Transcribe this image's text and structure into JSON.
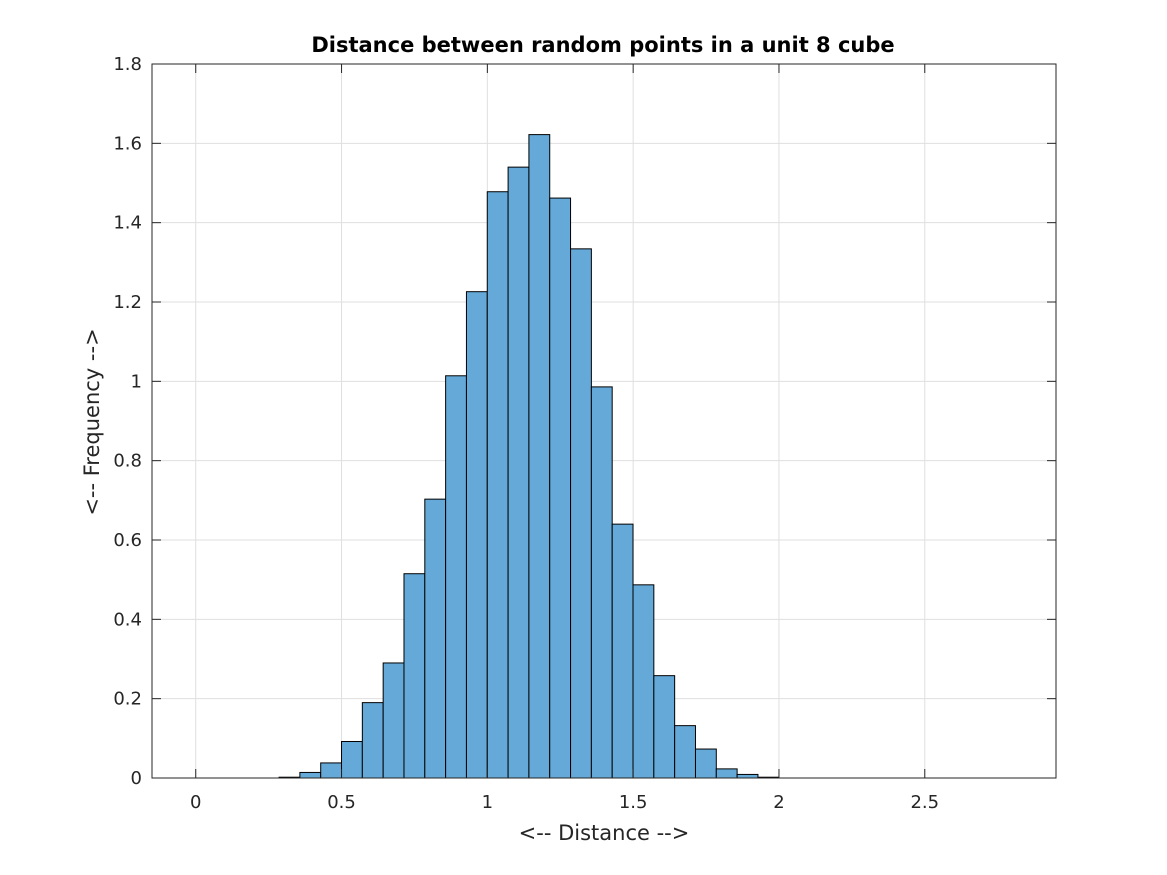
{
  "chart_data": {
    "type": "bar",
    "title": "Distance between random points in a unit 8 cube",
    "xlabel": "<-- Distance -->",
    "ylabel": "<-- Frequency -->",
    "xlim": [
      -0.15,
      2.95
    ],
    "ylim": [
      0,
      1.8
    ],
    "grid": true,
    "bin_width": 0.0714,
    "bin_edges_start": 0.2857,
    "values": [
      0.002,
      0.014,
      0.038,
      0.092,
      0.19,
      0.29,
      0.515,
      0.703,
      1.014,
      1.226,
      1.478,
      1.54,
      1.622,
      1.462,
      1.334,
      0.986,
      0.64,
      0.487,
      0.258,
      0.132,
      0.073,
      0.023,
      0.009,
      0.002
    ],
    "xticks": [
      0,
      0.5,
      1,
      1.5,
      2,
      2.5
    ],
    "xtick_labels": [
      "0",
      "0.5",
      "1",
      "1.5",
      "2",
      "2.5"
    ],
    "yticks": [
      0,
      0.2,
      0.4,
      0.6,
      0.8,
      1,
      1.2,
      1.4,
      1.6,
      1.8
    ],
    "ytick_labels": [
      "0",
      "0.2",
      "0.4",
      "0.6",
      "0.8",
      "1",
      "1.2",
      "1.4",
      "1.6",
      "1.8"
    ],
    "colors": {
      "bar_fill": "#64a9d8",
      "bar_edge": "#000000",
      "grid": "#dfdfdf",
      "axes": "#262626",
      "title": "#000000"
    }
  }
}
